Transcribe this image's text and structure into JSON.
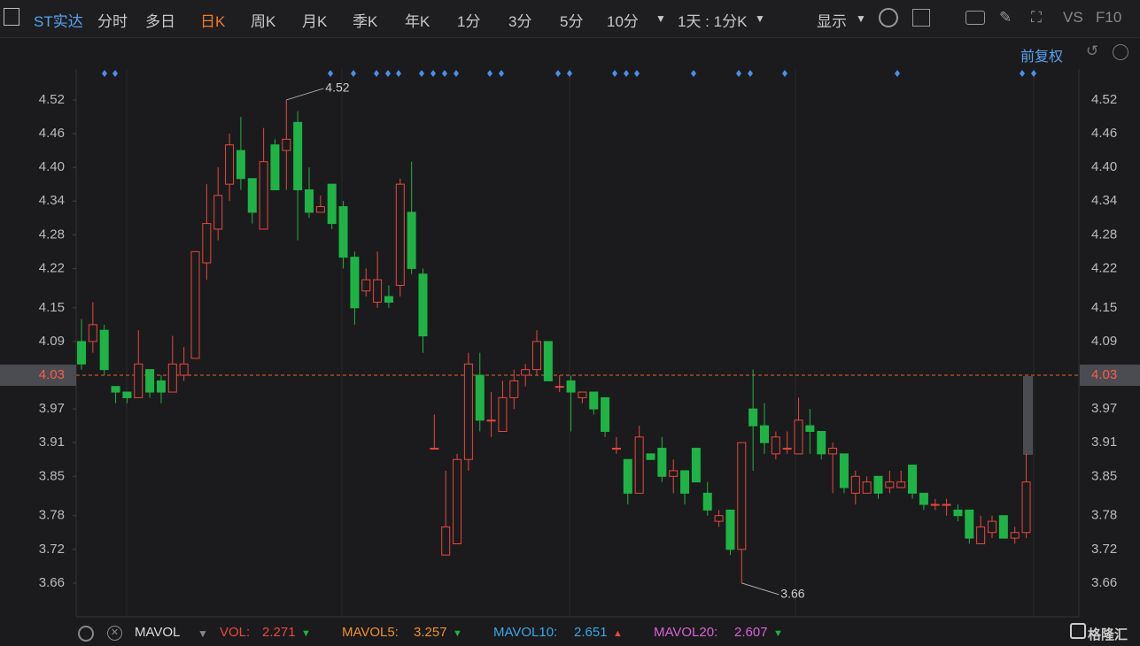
{
  "toolbar": {
    "stock": "ST实达",
    "tabs": [
      "分时",
      "多日",
      "日K",
      "周K",
      "月K",
      "季K",
      "年K",
      "1分",
      "3分",
      "5分",
      "10分"
    ],
    "active_tab": 2,
    "period": "1天 : 1分K",
    "display": "显示",
    "vs": "VS",
    "f10": "F10"
  },
  "chart_data": {
    "type": "candlestick",
    "adjust": "前复权",
    "candles": [
      [
        4.09,
        4.13,
        4.04,
        4.05
      ],
      [
        4.09,
        4.16,
        4.07,
        4.12
      ],
      [
        4.11,
        4.12,
        4.03,
        4.04
      ],
      [
        4.01,
        4.01,
        3.98,
        4.0
      ],
      [
        4.0,
        4.0,
        3.98,
        3.99
      ],
      [
        3.99,
        4.11,
        3.99,
        4.05
      ],
      [
        4.04,
        4.04,
        3.99,
        4.0
      ],
      [
        4.02,
        4.03,
        3.98,
        4.0
      ],
      [
        4.0,
        4.1,
        4.0,
        4.05
      ],
      [
        4.03,
        4.08,
        4.02,
        4.05
      ],
      [
        4.06,
        4.25,
        4.06,
        4.25
      ],
      [
        4.23,
        4.37,
        4.2,
        4.3
      ],
      [
        4.29,
        4.4,
        4.27,
        4.35
      ],
      [
        4.37,
        4.46,
        4.34,
        4.44
      ],
      [
        4.43,
        4.49,
        4.36,
        4.38
      ],
      [
        4.38,
        4.38,
        4.3,
        4.32
      ],
      [
        4.29,
        4.47,
        4.29,
        4.41
      ],
      [
        4.44,
        4.45,
        4.36,
        4.36
      ],
      [
        4.43,
        4.52,
        4.36,
        4.45
      ],
      [
        4.48,
        4.5,
        4.27,
        4.36
      ],
      [
        4.36,
        4.4,
        4.31,
        4.32
      ],
      [
        4.32,
        4.35,
        4.32,
        4.33
      ],
      [
        4.37,
        4.37,
        4.29,
        4.3
      ],
      [
        4.33,
        4.34,
        4.22,
        4.24
      ],
      [
        4.24,
        4.25,
        4.12,
        4.15
      ],
      [
        4.18,
        4.22,
        4.17,
        4.2
      ],
      [
        4.16,
        4.25,
        4.15,
        4.2
      ],
      [
        4.17,
        4.19,
        4.15,
        4.16
      ],
      [
        4.19,
        4.38,
        4.17,
        4.37
      ],
      [
        4.32,
        4.41,
        4.21,
        4.22
      ],
      [
        4.21,
        4.22,
        4.07,
        4.1
      ],
      [
        3.9,
        3.96,
        3.9,
        3.9
      ],
      [
        3.71,
        3.86,
        3.71,
        3.76
      ],
      [
        3.73,
        3.89,
        3.73,
        3.88
      ],
      [
        3.88,
        4.07,
        3.86,
        4.05
      ],
      [
        4.03,
        4.07,
        3.93,
        3.95
      ],
      [
        3.95,
        4.0,
        3.92,
        3.95
      ],
      [
        3.93,
        4.02,
        3.93,
        3.99
      ],
      [
        3.99,
        4.04,
        3.97,
        4.02
      ],
      [
        4.03,
        4.05,
        4.01,
        4.04
      ],
      [
        4.04,
        4.11,
        4.03,
        4.09
      ],
      [
        4.09,
        4.09,
        4.02,
        4.02
      ],
      [
        4.01,
        4.03,
        4.0,
        4.01
      ],
      [
        4.02,
        4.03,
        3.93,
        4.0
      ],
      [
        3.99,
        4.0,
        3.98,
        4.0
      ],
      [
        4.0,
        4.0,
        3.96,
        3.97
      ],
      [
        3.99,
        3.99,
        3.92,
        3.93
      ],
      [
        3.9,
        3.92,
        3.89,
        3.9
      ],
      [
        3.88,
        3.88,
        3.8,
        3.82
      ],
      [
        3.82,
        3.94,
        3.82,
        3.92
      ],
      [
        3.89,
        3.89,
        3.88,
        3.88
      ],
      [
        3.9,
        3.92,
        3.84,
        3.85
      ],
      [
        3.85,
        3.88,
        3.82,
        3.86
      ],
      [
        3.86,
        3.86,
        3.8,
        3.82
      ],
      [
        3.9,
        3.9,
        3.84,
        3.84
      ],
      [
        3.82,
        3.84,
        3.78,
        3.79
      ],
      [
        3.77,
        3.79,
        3.76,
        3.78
      ],
      [
        3.79,
        3.79,
        3.71,
        3.72
      ],
      [
        3.72,
        3.91,
        3.66,
        3.91
      ],
      [
        3.97,
        4.04,
        3.86,
        3.94
      ],
      [
        3.94,
        3.98,
        3.89,
        3.91
      ],
      [
        3.89,
        3.93,
        3.88,
        3.92
      ],
      [
        3.9,
        3.93,
        3.89,
        3.9
      ],
      [
        3.89,
        3.99,
        3.89,
        3.95
      ],
      [
        3.94,
        3.97,
        3.89,
        3.93
      ],
      [
        3.93,
        3.93,
        3.88,
        3.89
      ],
      [
        3.89,
        3.91,
        3.82,
        3.9
      ],
      [
        3.89,
        3.89,
        3.82,
        3.83
      ],
      [
        3.82,
        3.86,
        3.8,
        3.85
      ],
      [
        3.82,
        3.85,
        3.82,
        3.84
      ],
      [
        3.85,
        3.85,
        3.81,
        3.82
      ],
      [
        3.83,
        3.86,
        3.82,
        3.84
      ],
      [
        3.83,
        3.86,
        3.83,
        3.84
      ],
      [
        3.87,
        3.87,
        3.81,
        3.82
      ],
      [
        3.82,
        3.82,
        3.79,
        3.8
      ],
      [
        3.8,
        3.81,
        3.79,
        3.8
      ],
      [
        3.8,
        3.81,
        3.78,
        3.8
      ],
      [
        3.79,
        3.8,
        3.77,
        3.78
      ],
      [
        3.79,
        3.79,
        3.73,
        3.74
      ],
      [
        3.73,
        3.78,
        3.73,
        3.76
      ],
      [
        3.75,
        3.78,
        3.74,
        3.77
      ],
      [
        3.78,
        3.78,
        3.74,
        3.74
      ],
      [
        3.74,
        3.76,
        3.73,
        3.75
      ],
      [
        3.75,
        3.89,
        3.74,
        3.84
      ]
    ],
    "ylim": [
      3.6,
      4.575
    ],
    "yticks": [
      {
        "value": 4.52,
        "label": "4.52"
      },
      {
        "value": 4.46,
        "label": "4.46"
      },
      {
        "value": 4.4,
        "label": "4.40"
      },
      {
        "value": 4.34,
        "label": "4.34"
      },
      {
        "value": 4.28,
        "label": "4.28"
      },
      {
        "value": 4.22,
        "label": "4.22"
      },
      {
        "value": 4.15,
        "label": "4.15"
      },
      {
        "value": 4.09,
        "label": "4.09"
      },
      {
        "value": 4.03,
        "label": "4.03"
      },
      {
        "value": 3.97,
        "label": "3.97"
      },
      {
        "value": 3.91,
        "label": "3.91"
      },
      {
        "value": 3.85,
        "label": "3.85"
      },
      {
        "value": 3.78,
        "label": "3.78"
      },
      {
        "value": 3.72,
        "label": "3.72"
      },
      {
        "value": 3.66,
        "label": "3.66"
      }
    ],
    "current_price": 4.03,
    "annotations": [
      {
        "text": "4.52",
        "value": 4.52,
        "index": 18
      },
      {
        "text": "3.66",
        "value": 3.66,
        "index": 58
      }
    ],
    "colors": {
      "up": "#e8473f",
      "down": "#1fb346"
    }
  },
  "footer": {
    "indicator": "MAVOL",
    "items": [
      {
        "label": "VOL:",
        "value": "2.271"
      },
      {
        "label": "MAVOL5:",
        "value": "3.257"
      },
      {
        "label": "MAVOL10:",
        "value": "2.651"
      },
      {
        "label": "MAVOL20:",
        "value": "2.607"
      }
    ],
    "logo": "格隆汇"
  }
}
